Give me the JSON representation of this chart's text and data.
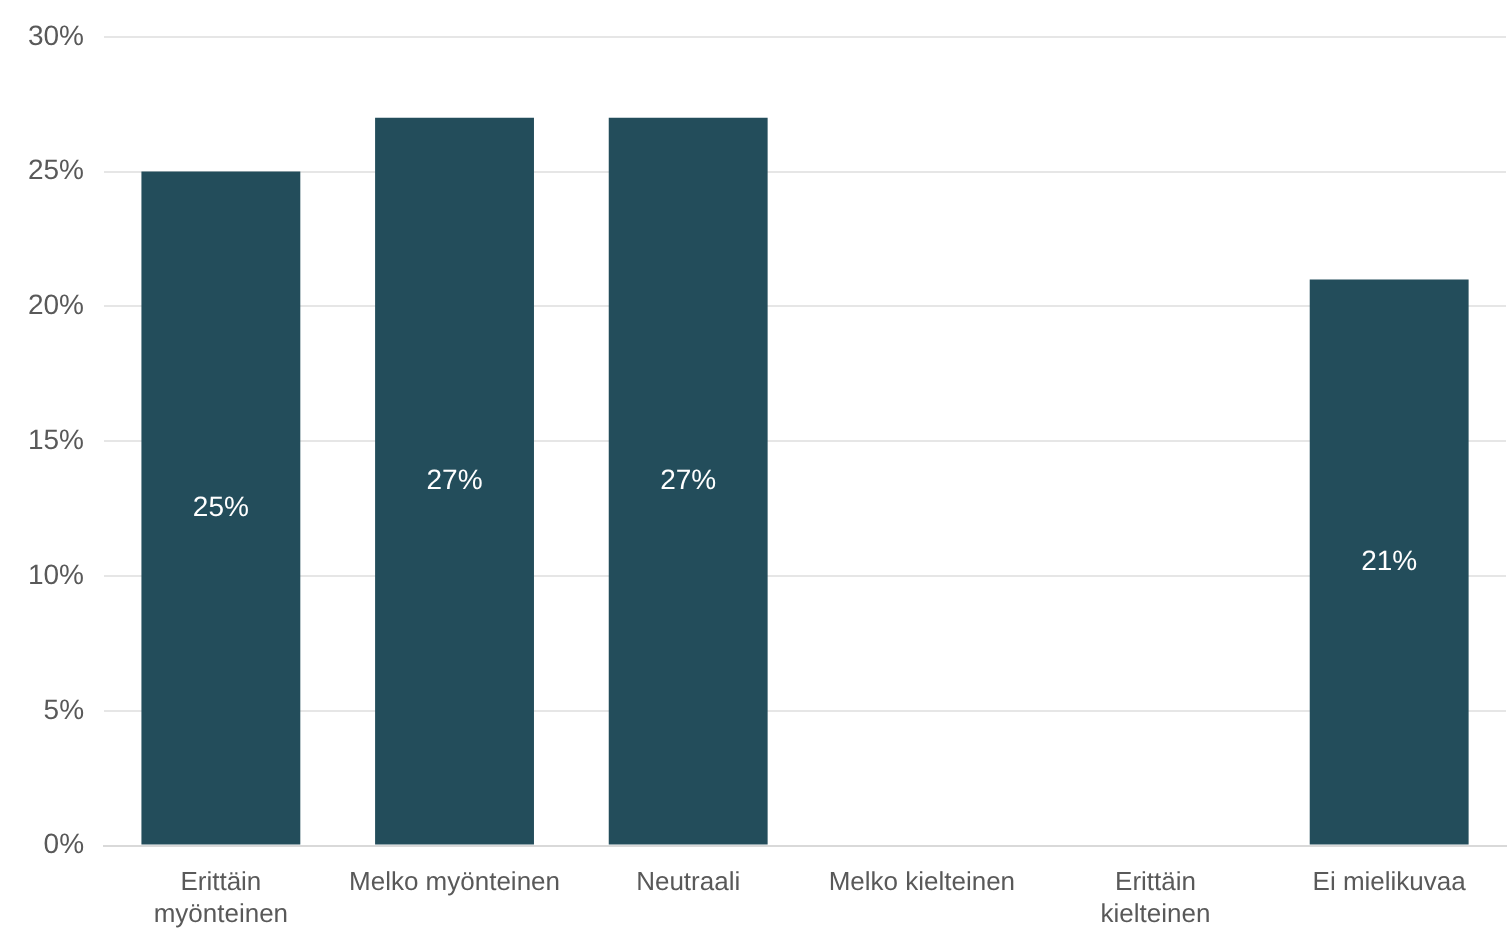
{
  "chart_data": {
    "type": "bar",
    "categories": [
      "Erittäin myönteinen",
      "Melko myönteinen",
      "Neutraali",
      "Melko kielteinen",
      "Erittäin kielteinen",
      "Ei mielikuvaa"
    ],
    "values": [
      25,
      27,
      27,
      null,
      null,
      21
    ],
    "value_labels": [
      "25%",
      "27%",
      "27%",
      null,
      null,
      "21%"
    ],
    "color": "#234d5b",
    "ylim": [
      0,
      30
    ],
    "yticks": [
      {
        "value": 0,
        "label": "0%"
      },
      {
        "value": 5,
        "label": "5%"
      },
      {
        "value": 10,
        "label": "10%"
      },
      {
        "value": 15,
        "label": "15%"
      },
      {
        "value": 20,
        "label": "20%"
      },
      {
        "value": 25,
        "label": "25%"
      },
      {
        "value": 30,
        "label": "30%"
      }
    ],
    "grid": "y"
  }
}
